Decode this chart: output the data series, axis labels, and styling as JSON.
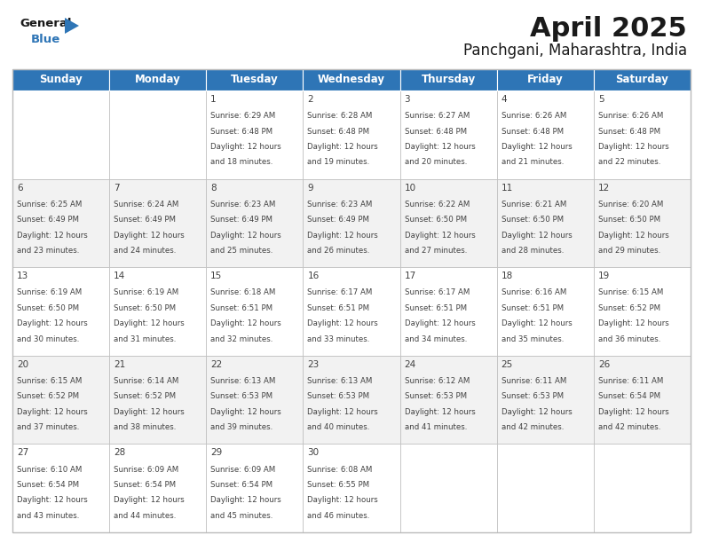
{
  "title": "April 2025",
  "subtitle": "Panchgani, Maharashtra, India",
  "header_bg": "#2E75B6",
  "header_text_color": "#FFFFFF",
  "day_names": [
    "Sunday",
    "Monday",
    "Tuesday",
    "Wednesday",
    "Thursday",
    "Friday",
    "Saturday"
  ],
  "row_bg_odd": "#F2F2F2",
  "row_bg_even": "#FFFFFF",
  "cell_text_color": "#404040",
  "border_color": "#BBBBBB",
  "days": [
    {
      "date": 1,
      "col": 2,
      "row": 0,
      "sunrise": "6:29 AM",
      "sunset": "6:48 PM",
      "daylight_min": 18
    },
    {
      "date": 2,
      "col": 3,
      "row": 0,
      "sunrise": "6:28 AM",
      "sunset": "6:48 PM",
      "daylight_min": 19
    },
    {
      "date": 3,
      "col": 4,
      "row": 0,
      "sunrise": "6:27 AM",
      "sunset": "6:48 PM",
      "daylight_min": 20
    },
    {
      "date": 4,
      "col": 5,
      "row": 0,
      "sunrise": "6:26 AM",
      "sunset": "6:48 PM",
      "daylight_min": 21
    },
    {
      "date": 5,
      "col": 6,
      "row": 0,
      "sunrise": "6:26 AM",
      "sunset": "6:48 PM",
      "daylight_min": 22
    },
    {
      "date": 6,
      "col": 0,
      "row": 1,
      "sunrise": "6:25 AM",
      "sunset": "6:49 PM",
      "daylight_min": 23
    },
    {
      "date": 7,
      "col": 1,
      "row": 1,
      "sunrise": "6:24 AM",
      "sunset": "6:49 PM",
      "daylight_min": 24
    },
    {
      "date": 8,
      "col": 2,
      "row": 1,
      "sunrise": "6:23 AM",
      "sunset": "6:49 PM",
      "daylight_min": 25
    },
    {
      "date": 9,
      "col": 3,
      "row": 1,
      "sunrise": "6:23 AM",
      "sunset": "6:49 PM",
      "daylight_min": 26
    },
    {
      "date": 10,
      "col": 4,
      "row": 1,
      "sunrise": "6:22 AM",
      "sunset": "6:50 PM",
      "daylight_min": 27
    },
    {
      "date": 11,
      "col": 5,
      "row": 1,
      "sunrise": "6:21 AM",
      "sunset": "6:50 PM",
      "daylight_min": 28
    },
    {
      "date": 12,
      "col": 6,
      "row": 1,
      "sunrise": "6:20 AM",
      "sunset": "6:50 PM",
      "daylight_min": 29
    },
    {
      "date": 13,
      "col": 0,
      "row": 2,
      "sunrise": "6:19 AM",
      "sunset": "6:50 PM",
      "daylight_min": 30
    },
    {
      "date": 14,
      "col": 1,
      "row": 2,
      "sunrise": "6:19 AM",
      "sunset": "6:50 PM",
      "daylight_min": 31
    },
    {
      "date": 15,
      "col": 2,
      "row": 2,
      "sunrise": "6:18 AM",
      "sunset": "6:51 PM",
      "daylight_min": 32
    },
    {
      "date": 16,
      "col": 3,
      "row": 2,
      "sunrise": "6:17 AM",
      "sunset": "6:51 PM",
      "daylight_min": 33
    },
    {
      "date": 17,
      "col": 4,
      "row": 2,
      "sunrise": "6:17 AM",
      "sunset": "6:51 PM",
      "daylight_min": 34
    },
    {
      "date": 18,
      "col": 5,
      "row": 2,
      "sunrise": "6:16 AM",
      "sunset": "6:51 PM",
      "daylight_min": 35
    },
    {
      "date": 19,
      "col": 6,
      "row": 2,
      "sunrise": "6:15 AM",
      "sunset": "6:52 PM",
      "daylight_min": 36
    },
    {
      "date": 20,
      "col": 0,
      "row": 3,
      "sunrise": "6:15 AM",
      "sunset": "6:52 PM",
      "daylight_min": 37
    },
    {
      "date": 21,
      "col": 1,
      "row": 3,
      "sunrise": "6:14 AM",
      "sunset": "6:52 PM",
      "daylight_min": 38
    },
    {
      "date": 22,
      "col": 2,
      "row": 3,
      "sunrise": "6:13 AM",
      "sunset": "6:53 PM",
      "daylight_min": 39
    },
    {
      "date": 23,
      "col": 3,
      "row": 3,
      "sunrise": "6:13 AM",
      "sunset": "6:53 PM",
      "daylight_min": 40
    },
    {
      "date": 24,
      "col": 4,
      "row": 3,
      "sunrise": "6:12 AM",
      "sunset": "6:53 PM",
      "daylight_min": 41
    },
    {
      "date": 25,
      "col": 5,
      "row": 3,
      "sunrise": "6:11 AM",
      "sunset": "6:53 PM",
      "daylight_min": 42
    },
    {
      "date": 26,
      "col": 6,
      "row": 3,
      "sunrise": "6:11 AM",
      "sunset": "6:54 PM",
      "daylight_min": 42
    },
    {
      "date": 27,
      "col": 0,
      "row": 4,
      "sunrise": "6:10 AM",
      "sunset": "6:54 PM",
      "daylight_min": 43
    },
    {
      "date": 28,
      "col": 1,
      "row": 4,
      "sunrise": "6:09 AM",
      "sunset": "6:54 PM",
      "daylight_min": 44
    },
    {
      "date": 29,
      "col": 2,
      "row": 4,
      "sunrise": "6:09 AM",
      "sunset": "6:54 PM",
      "daylight_min": 45
    },
    {
      "date": 30,
      "col": 3,
      "row": 4,
      "sunrise": "6:08 AM",
      "sunset": "6:55 PM",
      "daylight_min": 46
    }
  ],
  "logo_color_black": "#1A1A1A",
  "logo_color_blue": "#2E75B6",
  "title_fontsize": 22,
  "subtitle_fontsize": 12,
  "day_header_fontsize": 8.5,
  "date_fontsize": 7.5,
  "cell_fontsize": 6.2
}
